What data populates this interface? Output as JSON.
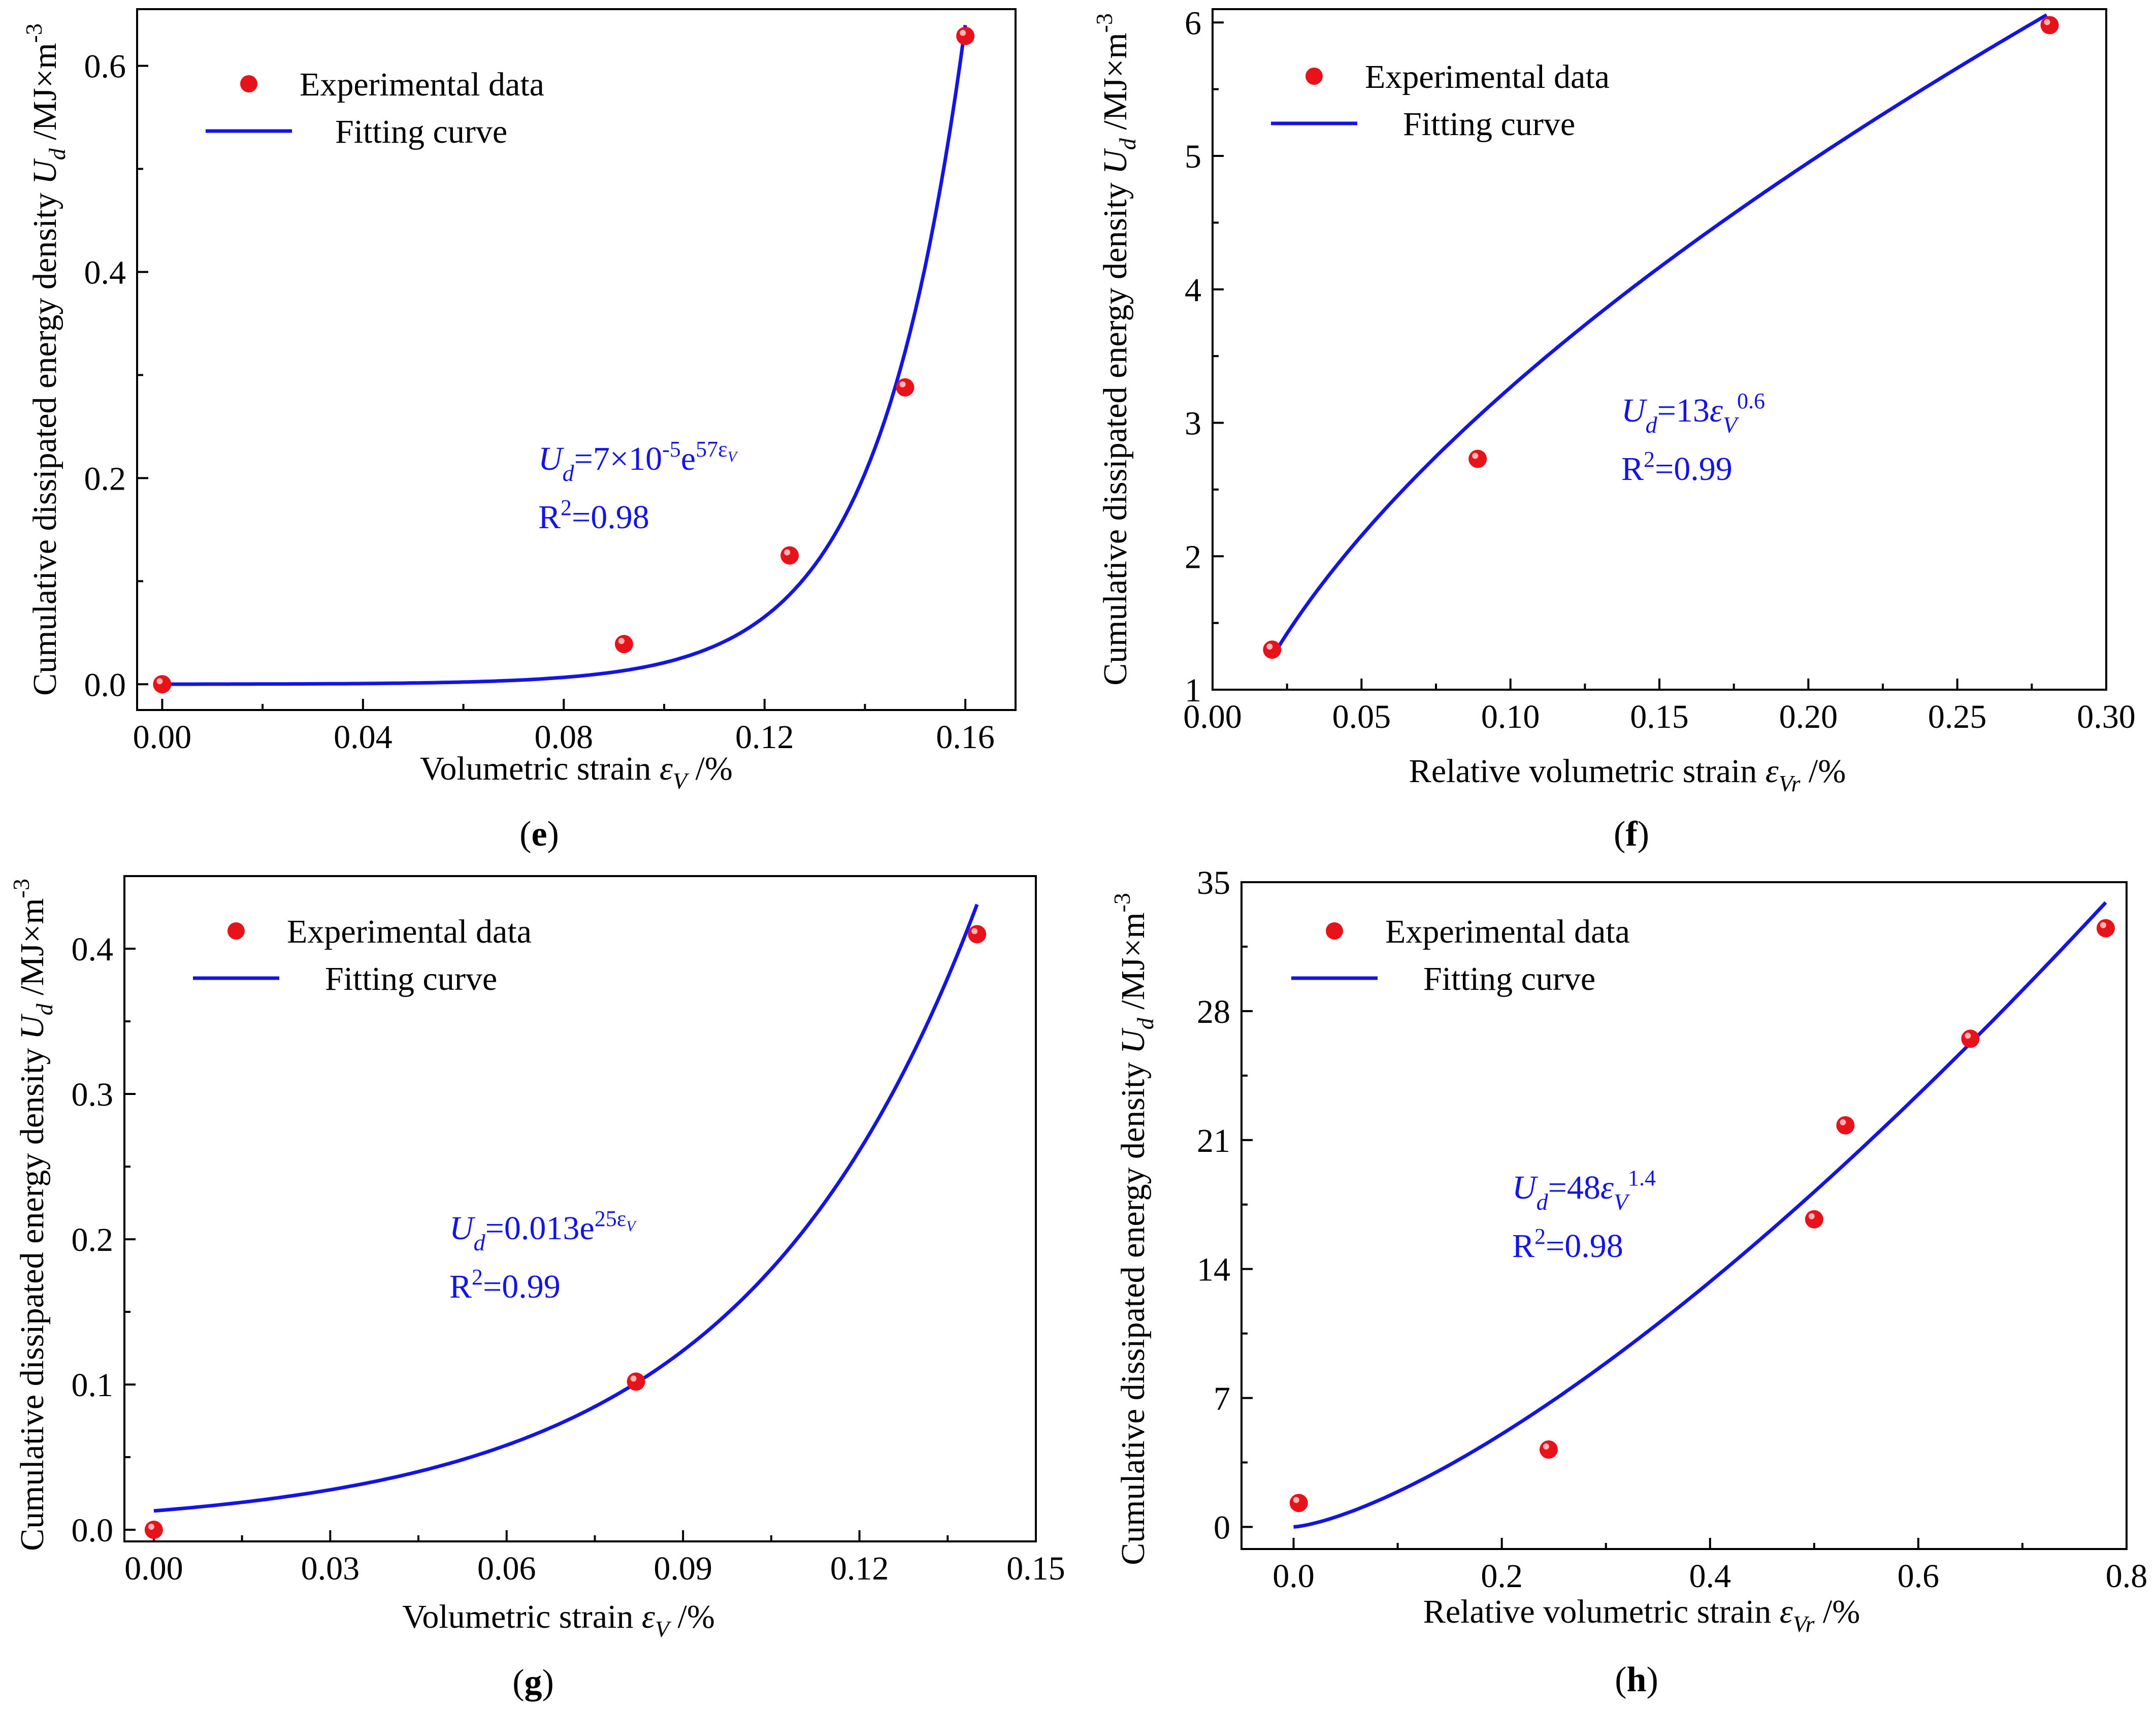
{
  "colors": {
    "fit": "#1414e6",
    "point": "#e8121b",
    "axis": "#000000",
    "equation": "#1414e6"
  },
  "chart_data": [
    {
      "id": "e",
      "type": "scatter",
      "panel_label": "(e)",
      "xlabel": "Volumetric strain ε_V /%",
      "ylabel": "Cumulative dissipated energy density U_d /MJ×m^-3",
      "xlim": [
        -0.005,
        0.17
      ],
      "ylim": [
        -0.025,
        0.655
      ],
      "xticks": [
        0.0,
        0.04,
        0.08,
        0.12,
        0.16
      ],
      "xtick_labels": [
        "0.00",
        "0.04",
        "0.08",
        "0.12",
        "0.16"
      ],
      "yticks": [
        0.0,
        0.2,
        0.4,
        0.6
      ],
      "ytick_labels": [
        "0.0",
        "0.2",
        "0.4",
        "0.6"
      ],
      "legend": [
        "Experimental data",
        "Fitting curve"
      ],
      "series": [
        {
          "name": "Experimental data",
          "kind": "points",
          "x": [
            0.0,
            0.092,
            0.125,
            0.148,
            0.16
          ],
          "y": [
            0.0,
            0.039,
            0.125,
            0.288,
            0.629
          ]
        },
        {
          "name": "Fitting curve",
          "kind": "line",
          "model": "exp",
          "a": 7e-05,
          "b": 57,
          "x_range": [
            0.0,
            0.16
          ]
        }
      ],
      "equation": {
        "main": "U",
        "sub": "d",
        "rest": "=7×10",
        "sup1": "-5",
        "mid": "e",
        "sup2": "57ε",
        "sup2sub": "V"
      },
      "r2": {
        "r": "R",
        "sup": "2",
        "val": "=0.98"
      }
    },
    {
      "id": "f",
      "type": "scatter",
      "panel_label": "(f)",
      "xlabel": "Relative volumetric strain ε_Vr /%",
      "ylabel": "Cumulative dissipated energy density U_d /MJ×m^-3",
      "xlim": [
        0.0,
        0.3
      ],
      "ylim": [
        1.0,
        6.1
      ],
      "xticks": [
        0.0,
        0.05,
        0.1,
        0.15,
        0.2,
        0.25,
        0.3
      ],
      "xtick_labels": [
        "0.00",
        "0.05",
        "0.10",
        "0.15",
        "0.20",
        "0.25",
        "0.30"
      ],
      "yticks": [
        1,
        2,
        3,
        4,
        5,
        6
      ],
      "ytick_labels": [
        "1",
        "2",
        "3",
        "4",
        "5",
        "6"
      ],
      "legend": [
        "Experimental data",
        "Fitting curve"
      ],
      "series": [
        {
          "name": "Experimental data",
          "kind": "points",
          "x": [
            0.02,
            0.089,
            0.281
          ],
          "y": [
            1.3,
            2.73,
            5.98
          ]
        },
        {
          "name": "Fitting curve",
          "kind": "line",
          "model": "pow",
          "a": 13,
          "b": 0.6,
          "x_range": [
            0.02,
            0.28
          ]
        }
      ],
      "equation": {
        "main": "U",
        "sub": "d",
        "rest": "=13",
        "eps": "ε",
        "epssub": "V",
        "sup": "0.6"
      },
      "r2": {
        "r": "R",
        "sup": "2",
        "val": "=0.99"
      }
    },
    {
      "id": "g",
      "type": "scatter",
      "panel_label": "(g)",
      "xlabel": "Volumetric strain ε_V /%",
      "ylabel": "Cumulative dissipated energy density U_d /MJ×m^-3",
      "xlim": [
        -0.005,
        0.15
      ],
      "ylim": [
        -0.008,
        0.45
      ],
      "xticks": [
        0.0,
        0.03,
        0.06,
        0.09,
        0.12,
        0.15
      ],
      "xtick_labels": [
        "0.00",
        "0.03",
        "0.06",
        "0.09",
        "0.12",
        "0.15"
      ],
      "yticks": [
        0.0,
        0.1,
        0.2,
        0.3,
        0.4
      ],
      "ytick_labels": [
        "0.0",
        "0.1",
        "0.2",
        "0.3",
        "0.4"
      ],
      "legend": [
        "Experimental data",
        "Fitting curve"
      ],
      "series": [
        {
          "name": "Experimental data",
          "kind": "points",
          "x": [
            0.0,
            0.082,
            0.14
          ],
          "y": [
            0.0,
            0.102,
            0.41
          ]
        },
        {
          "name": "Fitting curve",
          "kind": "line",
          "model": "exp",
          "a": 0.013,
          "b": 25,
          "x_range": [
            0.0,
            0.14
          ]
        }
      ],
      "equation": {
        "main": "U",
        "sub": "d",
        "rest": "=0.013e",
        "sup2": "25ε",
        "sup2sub": "V"
      },
      "r2": {
        "r": "R",
        "sup": "2",
        "val": "=0.99"
      }
    },
    {
      "id": "h",
      "type": "scatter",
      "panel_label": "(h)",
      "xlabel": "Relative volumetric strain ε_Vr /%",
      "ylabel": "Cumulative dissipated energy density U_d /MJ×m^-3",
      "xlim": [
        -0.05,
        0.8
      ],
      "ylim": [
        -1.2,
        35
      ],
      "xticks": [
        0.0,
        0.2,
        0.4,
        0.6,
        0.8
      ],
      "xtick_labels": [
        "0.0",
        "0.2",
        "0.4",
        "0.6",
        "0.8"
      ],
      "yticks": [
        0,
        7,
        14,
        21,
        28,
        35
      ],
      "ytick_labels": [
        "0",
        "7",
        "14",
        "21",
        "28",
        "35"
      ],
      "legend": [
        "Experimental data",
        "Fitting curve"
      ],
      "series": [
        {
          "name": "Experimental data",
          "kind": "points",
          "x": [
            0.005,
            0.245,
            0.5,
            0.53,
            0.65,
            0.78
          ],
          "y": [
            1.3,
            4.2,
            16.7,
            21.8,
            26.5,
            32.5
          ]
        },
        {
          "name": "Fitting curve",
          "kind": "line",
          "model": "pow",
          "a": 48,
          "b": 1.4,
          "x_range": [
            0.0,
            0.78
          ]
        }
      ],
      "equation": {
        "main": "U",
        "sub": "d",
        "rest": "=48",
        "eps": "ε",
        "epssub": "V",
        "sup": "1.4"
      },
      "r2": {
        "r": "R",
        "sup": "2",
        "val": "=0.98"
      }
    }
  ]
}
